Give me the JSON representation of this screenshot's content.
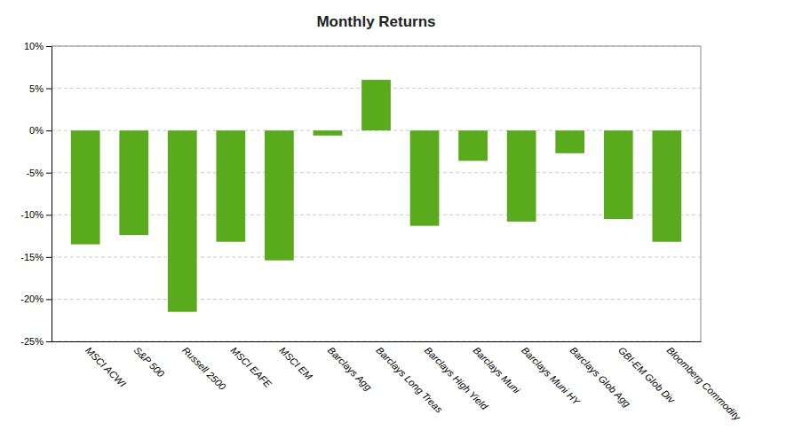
{
  "chart_data": {
    "type": "bar",
    "title": "Monthly Returns",
    "categories": [
      "MSCI ACWI",
      "S&P 500",
      "Russell 2500",
      "MSCI EAFE",
      "MSCI EM",
      "Barclays Agg",
      "Barclays Long Treas",
      "Barclays High Yield",
      "Barclays Muni",
      "Barclays Muni HY",
      "Barclays Glob Agg",
      "GBI-EM Glob Div",
      "Bloomberg Commodity"
    ],
    "values": [
      -13.5,
      -12.4,
      -21.5,
      -13.2,
      -15.4,
      -0.6,
      6.0,
      -11.3,
      -3.6,
      -10.8,
      -2.7,
      -10.5,
      -13.2
    ],
    "color": "#5aaa1e",
    "ylim": [
      -25,
      10
    ],
    "yticks": [
      {
        "value": -25,
        "label": "-25%"
      },
      {
        "value": -20,
        "label": "-20%"
      },
      {
        "value": -15,
        "label": "-15%"
      },
      {
        "value": -10,
        "label": "-10%"
      },
      {
        "value": -5,
        "label": "-5%"
      },
      {
        "value": 0,
        "label": "0%"
      },
      {
        "value": 5,
        "label": "5%"
      },
      {
        "value": 10,
        "label": "10%"
      }
    ],
    "grid": true
  }
}
